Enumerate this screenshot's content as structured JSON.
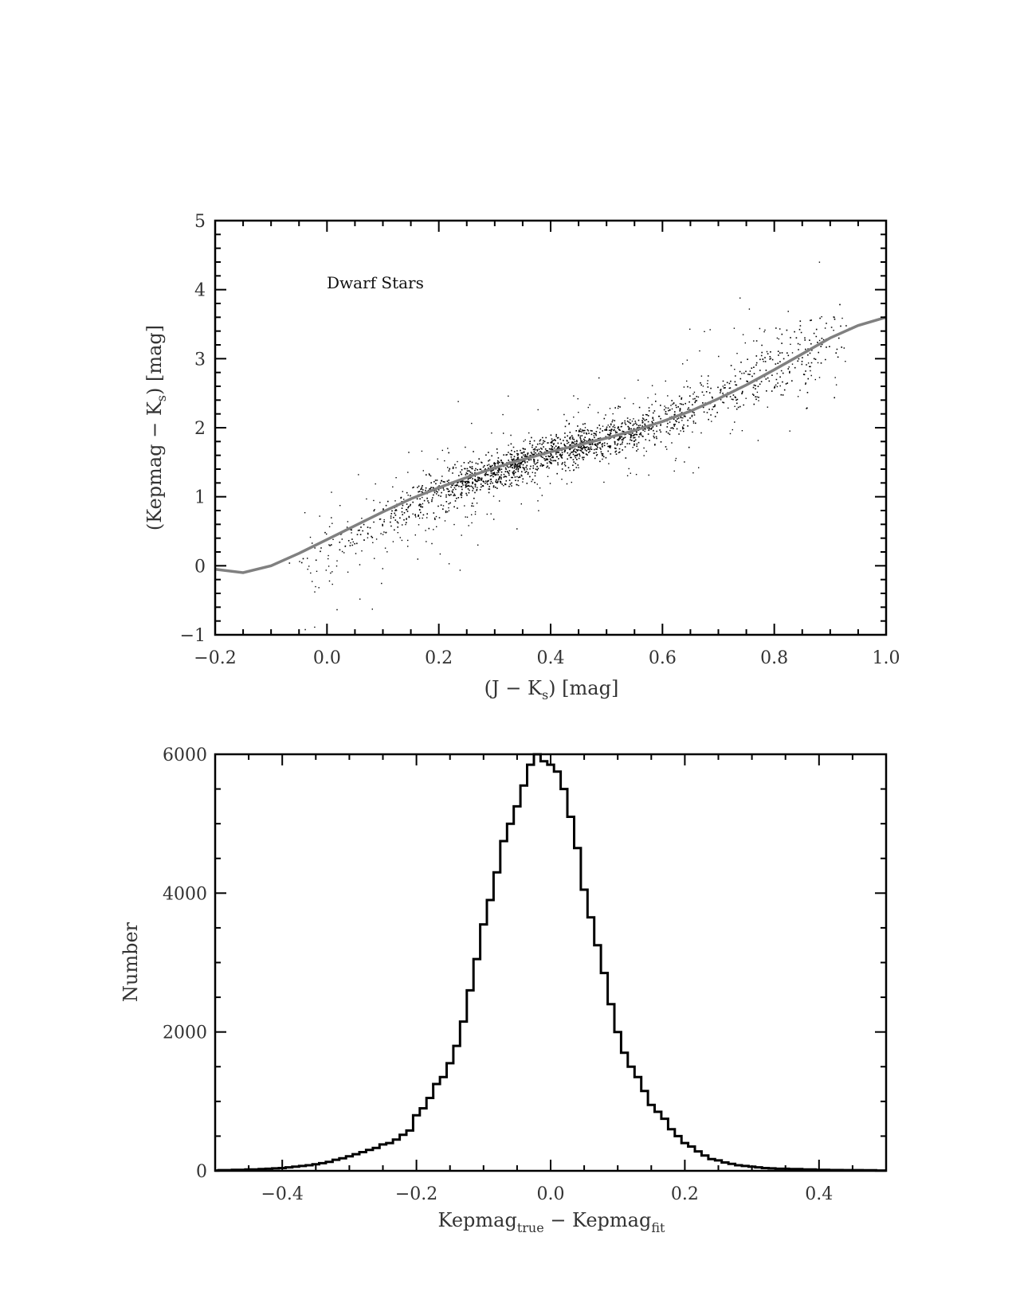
{
  "colors": {
    "axes": "#000000",
    "points": "#000000",
    "fit_line": "#808080",
    "histogram": "#000000",
    "label": "#333333"
  },
  "chart_data": [
    {
      "type": "scatter",
      "title": "",
      "annotation": "Dwarf Stars",
      "xlabel": "(J − K",
      "xlabel_sub": "s",
      "xlabel_tail": ") [mag]",
      "ylabel": "(Kepmag − K",
      "ylabel_sub": "s",
      "ylabel_tail": ") [mag]",
      "xlim": [
        -0.2,
        1.0
      ],
      "ylim": [
        -1,
        5
      ],
      "xticks": [
        -0.2,
        0.0,
        0.2,
        0.4,
        0.6,
        0.8,
        1.0
      ],
      "xtick_labels": [
        "−0.2",
        "0.0",
        "0.2",
        "0.4",
        "0.6",
        "0.8",
        "1.0"
      ],
      "yticks": [
        -1,
        0,
        1,
        2,
        3,
        4,
        5
      ],
      "ytick_labels": [
        "−1",
        "0",
        "1",
        "2",
        "3",
        "4",
        "5"
      ],
      "grid": false,
      "density_ridge": {
        "x": [
          -0.05,
          0.0,
          0.05,
          0.1,
          0.15,
          0.2,
          0.25,
          0.3,
          0.35,
          0.4,
          0.45,
          0.5,
          0.55,
          0.6,
          0.65,
          0.7,
          0.75,
          0.8,
          0.85,
          0.9,
          0.93
        ],
        "y": [
          0.05,
          0.25,
          0.45,
          0.65,
          0.85,
          1.05,
          1.22,
          1.38,
          1.52,
          1.64,
          1.74,
          1.85,
          1.96,
          2.1,
          2.28,
          2.48,
          2.68,
          2.88,
          3.08,
          3.25,
          3.35
        ],
        "density": [
          0.03,
          0.07,
          0.12,
          0.18,
          0.28,
          0.55,
          0.85,
          1.0,
          1.0,
          1.0,
          0.95,
          0.85,
          0.7,
          0.55,
          0.4,
          0.3,
          0.25,
          0.3,
          0.35,
          0.2,
          0.08
        ],
        "spread": [
          0.09,
          0.09,
          0.09,
          0.1,
          0.11,
          0.12,
          0.12,
          0.12,
          0.12,
          0.12,
          0.12,
          0.12,
          0.12,
          0.12,
          0.13,
          0.14,
          0.16,
          0.2,
          0.26,
          0.28,
          0.3
        ]
      },
      "fit_curve": {
        "x": [
          -0.2,
          -0.15,
          -0.1,
          -0.05,
          0.0,
          0.05,
          0.1,
          0.15,
          0.2,
          0.25,
          0.3,
          0.35,
          0.4,
          0.45,
          0.5,
          0.55,
          0.6,
          0.65,
          0.7,
          0.75,
          0.8,
          0.85,
          0.9,
          0.95,
          1.0
        ],
        "y": [
          -0.05,
          -0.1,
          0.0,
          0.18,
          0.38,
          0.58,
          0.78,
          0.97,
          1.13,
          1.28,
          1.42,
          1.54,
          1.65,
          1.75,
          1.85,
          1.96,
          2.09,
          2.24,
          2.42,
          2.62,
          2.84,
          3.07,
          3.3,
          3.48,
          3.6
        ]
      }
    },
    {
      "type": "histogram",
      "title": "",
      "xlabel": "Kepmag",
      "xlabel_sub1": "true",
      "xlabel_mid": " − Kepmag",
      "xlabel_sub2": "fit",
      "ylabel": "Number",
      "xlim": [
        -0.5,
        0.5
      ],
      "ylim": [
        0,
        6000
      ],
      "xticks": [
        -0.4,
        -0.2,
        0.0,
        0.2,
        0.4
      ],
      "xtick_labels": [
        "−0.4",
        "−0.2",
        "0.0",
        "0.2",
        "0.4"
      ],
      "yticks": [
        0,
        2000,
        4000,
        6000
      ],
      "ytick_labels": [
        "0",
        "2000",
        "4000",
        "6000"
      ],
      "grid": false,
      "bin_width": 0.01,
      "bin_centers": [
        -0.5,
        -0.49,
        -0.48,
        -0.47,
        -0.46,
        -0.45,
        -0.44,
        -0.43,
        -0.42,
        -0.41,
        -0.4,
        -0.39,
        -0.38,
        -0.37,
        -0.36,
        -0.35,
        -0.34,
        -0.33,
        -0.32,
        -0.31,
        -0.3,
        -0.29,
        -0.28,
        -0.27,
        -0.26,
        -0.25,
        -0.24,
        -0.23,
        -0.22,
        -0.21,
        -0.2,
        -0.19,
        -0.18,
        -0.17,
        -0.16,
        -0.15,
        -0.14,
        -0.13,
        -0.12,
        -0.11,
        -0.1,
        -0.09,
        -0.08,
        -0.07,
        -0.06,
        -0.05,
        -0.04,
        -0.03,
        -0.02,
        -0.01,
        0.0,
        0.01,
        0.02,
        0.03,
        0.04,
        0.05,
        0.06,
        0.07,
        0.08,
        0.09,
        0.1,
        0.11,
        0.12,
        0.13,
        0.14,
        0.15,
        0.16,
        0.17,
        0.18,
        0.19,
        0.2,
        0.21,
        0.22,
        0.23,
        0.24,
        0.25,
        0.26,
        0.27,
        0.28,
        0.29,
        0.3,
        0.31,
        0.32,
        0.33,
        0.34,
        0.35,
        0.36,
        0.37,
        0.38,
        0.39,
        0.4,
        0.41,
        0.42,
        0.43,
        0.44,
        0.45,
        0.46,
        0.47,
        0.48,
        0.49,
        0.5
      ],
      "counts": [
        5,
        10,
        10,
        15,
        15,
        20,
        20,
        25,
        30,
        35,
        40,
        50,
        60,
        70,
        80,
        95,
        110,
        130,
        160,
        180,
        210,
        240,
        270,
        300,
        330,
        380,
        400,
        450,
        520,
        580,
        800,
        900,
        1050,
        1250,
        1350,
        1550,
        1800,
        2150,
        2600,
        3050,
        3550,
        3900,
        4300,
        4750,
        5000,
        5250,
        5550,
        5850,
        6000,
        5900,
        5850,
        5750,
        5500,
        5100,
        4650,
        4050,
        3650,
        3250,
        2850,
        2400,
        2000,
        1700,
        1500,
        1350,
        1150,
        950,
        850,
        750,
        600,
        500,
        400,
        350,
        280,
        220,
        170,
        150,
        120,
        100,
        80,
        70,
        60,
        50,
        40,
        35,
        30,
        30,
        25,
        25,
        20,
        20,
        15,
        15,
        12,
        12,
        10,
        10,
        10,
        8,
        8,
        5,
        5
      ]
    }
  ]
}
